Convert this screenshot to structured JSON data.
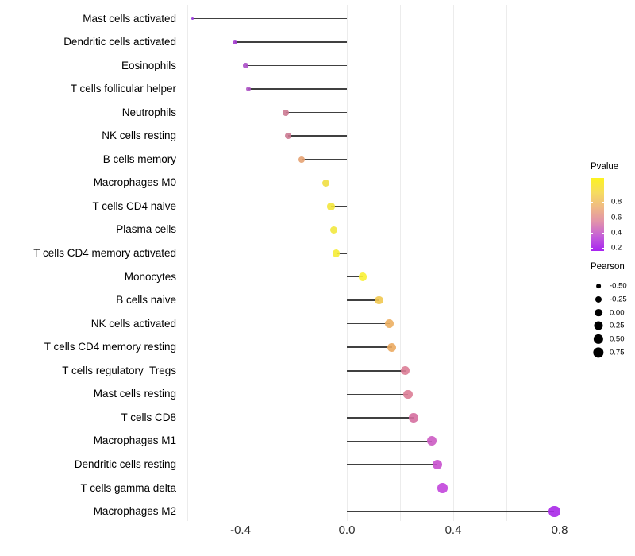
{
  "chart_data": {
    "type": "lollipop",
    "orientation": "horizontal",
    "title": "",
    "xlabel": "",
    "ylabel": "",
    "x_ticks": [
      "-0.4",
      "0.0",
      "0.4",
      "0.8"
    ],
    "x_tick_values": [
      -0.4,
      0.0,
      0.4,
      0.8
    ],
    "gridline_values": [
      -0.6,
      -0.4,
      -0.2,
      0.0,
      0.2,
      0.4,
      0.6,
      0.8
    ],
    "xlim": [
      -0.63,
      0.9
    ],
    "size_encoding": "Pearson",
    "color_encoding": "Pvalue",
    "categories": [
      "Mast cells activated",
      "Dendritic cells activated",
      "Eosinophils",
      "T cells follicular helper",
      "Neutrophils",
      "NK cells resting",
      "B cells memory",
      "Macrophages M0",
      "T cells CD4 naive",
      "Plasma cells",
      "T cells CD4 memory activated",
      "Monocytes",
      "B cells naive",
      "NK cells activated",
      "T cells CD4 memory resting",
      "T cells regulatory  Tregs",
      "Mast cells resting",
      "T cells CD8",
      "Macrophages M1",
      "Dendritic cells resting",
      "T cells gamma delta",
      "Macrophages M2"
    ],
    "pearson": [
      -0.58,
      -0.42,
      -0.38,
      -0.37,
      -0.23,
      -0.22,
      -0.17,
      -0.08,
      -0.06,
      -0.05,
      -0.04,
      0.06,
      0.12,
      0.16,
      0.17,
      0.22,
      0.23,
      0.25,
      0.32,
      0.34,
      0.36,
      0.78
    ],
    "dot_colors": [
      "#9230d8",
      "#a43bd0",
      "#ac4fc8",
      "#af55c6",
      "#cc7a92",
      "#cc7a92",
      "#e5a272",
      "#f0de41",
      "#f3e63c",
      "#f2e83e",
      "#f5ec36",
      "#faf135",
      "#f1c850",
      "#ecaf62",
      "#ebaa60",
      "#dc7d96",
      "#dc7d96",
      "#d56fa0",
      "#cc5bc3",
      "#c850ce",
      "#c245db",
      "#a928e8"
    ],
    "legend_pvalue": {
      "title": "Pvalue",
      "ticks": [
        "0.8",
        "0.6",
        "0.4",
        "0.2"
      ],
      "gradient_top_to_bottom": [
        "#fcf320",
        "#f6dc60",
        "#efb984",
        "#e292ab",
        "#c45fd8",
        "#a824f0"
      ]
    },
    "legend_pearson": {
      "title": "Pearson",
      "ticks": [
        "-0.50",
        "-0.25",
        "0.00",
        "0.25",
        "0.50",
        "0.75"
      ],
      "tick_values": [
        -0.5,
        -0.25,
        0.0,
        0.25,
        0.5,
        0.75
      ],
      "dot_color": "#000000"
    }
  },
  "colors": {
    "background": "#ffffff",
    "stem": "#404040",
    "gridline": "#ececec",
    "axis_text": "#2e2e2e",
    "label_text": "#000000"
  }
}
